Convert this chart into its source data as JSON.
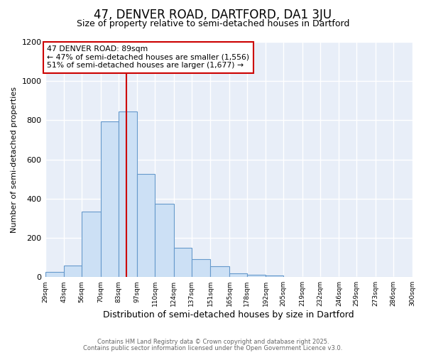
{
  "title": "47, DENVER ROAD, DARTFORD, DA1 3JU",
  "subtitle": "Size of property relative to semi-detached houses in Dartford",
  "xlabel": "Distribution of semi-detached houses by size in Dartford",
  "ylabel": "Number of semi-detached properties",
  "bin_labels": [
    "29sqm",
    "43sqm",
    "56sqm",
    "70sqm",
    "83sqm",
    "97sqm",
    "110sqm",
    "124sqm",
    "137sqm",
    "151sqm",
    "165sqm",
    "178sqm",
    "192sqm",
    "205sqm",
    "219sqm",
    "232sqm",
    "246sqm",
    "259sqm",
    "273sqm",
    "286sqm",
    "300sqm"
  ],
  "bin_edges": [
    29,
    43,
    56,
    70,
    83,
    97,
    110,
    124,
    137,
    151,
    165,
    178,
    192,
    205,
    219,
    232,
    246,
    259,
    273,
    286,
    300
  ],
  "bar_values": [
    25,
    60,
    335,
    795,
    845,
    525,
    375,
    148,
    90,
    55,
    20,
    13,
    8,
    0,
    0,
    0,
    0,
    0,
    0,
    0
  ],
  "bar_color": "#cce0f5",
  "bar_edge_color": "#6699cc",
  "property_value": 89,
  "vline_color": "#cc0000",
  "annotation_title": "47 DENVER ROAD: 89sqm",
  "annotation_line1": "← 47% of semi-detached houses are smaller (1,556)",
  "annotation_line2": "51% of semi-detached houses are larger (1,677) →",
  "annotation_box_color": "#ffffff",
  "annotation_box_edge": "#cc0000",
  "ylim": [
    0,
    1200
  ],
  "yticks": [
    0,
    200,
    400,
    600,
    800,
    1000,
    1200
  ],
  "footer1": "Contains HM Land Registry data © Crown copyright and database right 2025.",
  "footer2": "Contains public sector information licensed under the Open Government Licence v3.0.",
  "bg_color": "#ffffff",
  "plot_bg_color": "#e8eef8",
  "title_fontsize": 12,
  "subtitle_fontsize": 9
}
